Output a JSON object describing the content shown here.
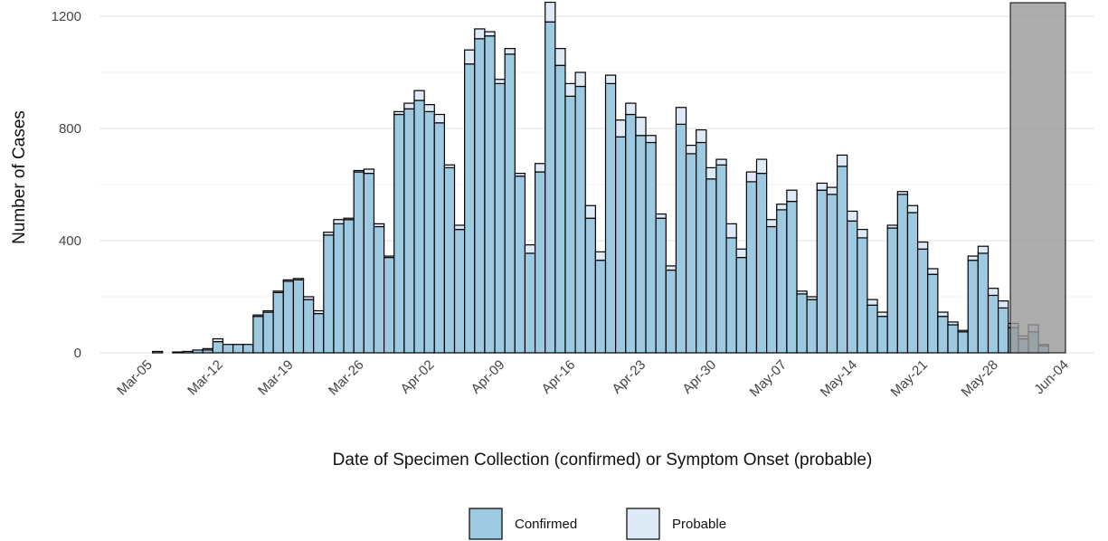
{
  "chart_data": {
    "type": "stacked_bar",
    "x_label": "Date of Specimen Collection (confirmed) or Symptom Onset (probable)",
    "y_label": "Number of Cases",
    "categories": [
      "Mar-05",
      null,
      null,
      null,
      null,
      null,
      null,
      "Mar-12",
      null,
      null,
      null,
      null,
      null,
      null,
      "Mar-19",
      null,
      null,
      null,
      null,
      null,
      null,
      "Mar-26",
      null,
      null,
      null,
      null,
      null,
      null,
      "Apr-02",
      null,
      null,
      null,
      null,
      null,
      null,
      "Apr-09",
      null,
      null,
      null,
      null,
      null,
      null,
      "Apr-16",
      null,
      null,
      null,
      null,
      null,
      null,
      "Apr-23",
      null,
      null,
      null,
      null,
      null,
      null,
      "Apr-30",
      null,
      null,
      null,
      null,
      null,
      null,
      "May-07",
      null,
      null,
      null,
      null,
      null,
      null,
      "May-14",
      null,
      null,
      null,
      null,
      null,
      null,
      "May-21",
      null,
      null,
      null,
      null,
      null,
      null,
      "May-28",
      null,
      null,
      null,
      null,
      null,
      null,
      "Jun-04"
    ],
    "series": [
      {
        "name": "Confirmed",
        "color": "#9ecae1",
        "values": [
          0,
          5,
          0,
          3,
          5,
          10,
          10,
          40,
          30,
          30,
          30,
          130,
          145,
          215,
          255,
          260,
          190,
          140,
          420,
          460,
          475,
          645,
          640,
          450,
          340,
          850,
          870,
          900,
          860,
          820,
          660,
          440,
          1030,
          1120,
          1130,
          960,
          1065,
          630,
          355,
          645,
          1180,
          1025,
          915,
          950,
          480,
          330,
          960,
          770,
          850,
          775,
          750,
          480,
          295,
          815,
          710,
          750,
          620,
          670,
          410,
          340,
          610,
          640,
          450,
          510,
          540,
          210,
          190,
          580,
          565,
          665,
          470,
          410,
          170,
          130,
          445,
          565,
          500,
          370,
          280,
          130,
          100,
          75,
          330,
          355,
          205,
          160,
          90,
          50,
          75,
          25,
          0,
          0
        ]
      },
      {
        "name": "Probable",
        "color": "#deebf7",
        "values": [
          0,
          0,
          0,
          0,
          0,
          0,
          5,
          10,
          0,
          0,
          0,
          5,
          5,
          5,
          5,
          5,
          10,
          10,
          10,
          15,
          5,
          5,
          15,
          10,
          5,
          10,
          20,
          35,
          25,
          30,
          10,
          15,
          50,
          35,
          15,
          15,
          20,
          10,
          30,
          30,
          70,
          60,
          45,
          50,
          45,
          30,
          30,
          60,
          40,
          65,
          25,
          15,
          15,
          60,
          30,
          45,
          40,
          20,
          50,
          30,
          35,
          50,
          25,
          20,
          40,
          10,
          10,
          25,
          25,
          40,
          35,
          30,
          20,
          15,
          10,
          10,
          25,
          25,
          20,
          15,
          10,
          5,
          15,
          25,
          25,
          25,
          15,
          10,
          25,
          5,
          0,
          0
        ]
      }
    ],
    "ylim": [
      0,
      1250
    ],
    "yticks": [
      0,
      400,
      800,
      1200
    ],
    "grid": true,
    "minor_grid": true,
    "legend": "bottom"
  }
}
